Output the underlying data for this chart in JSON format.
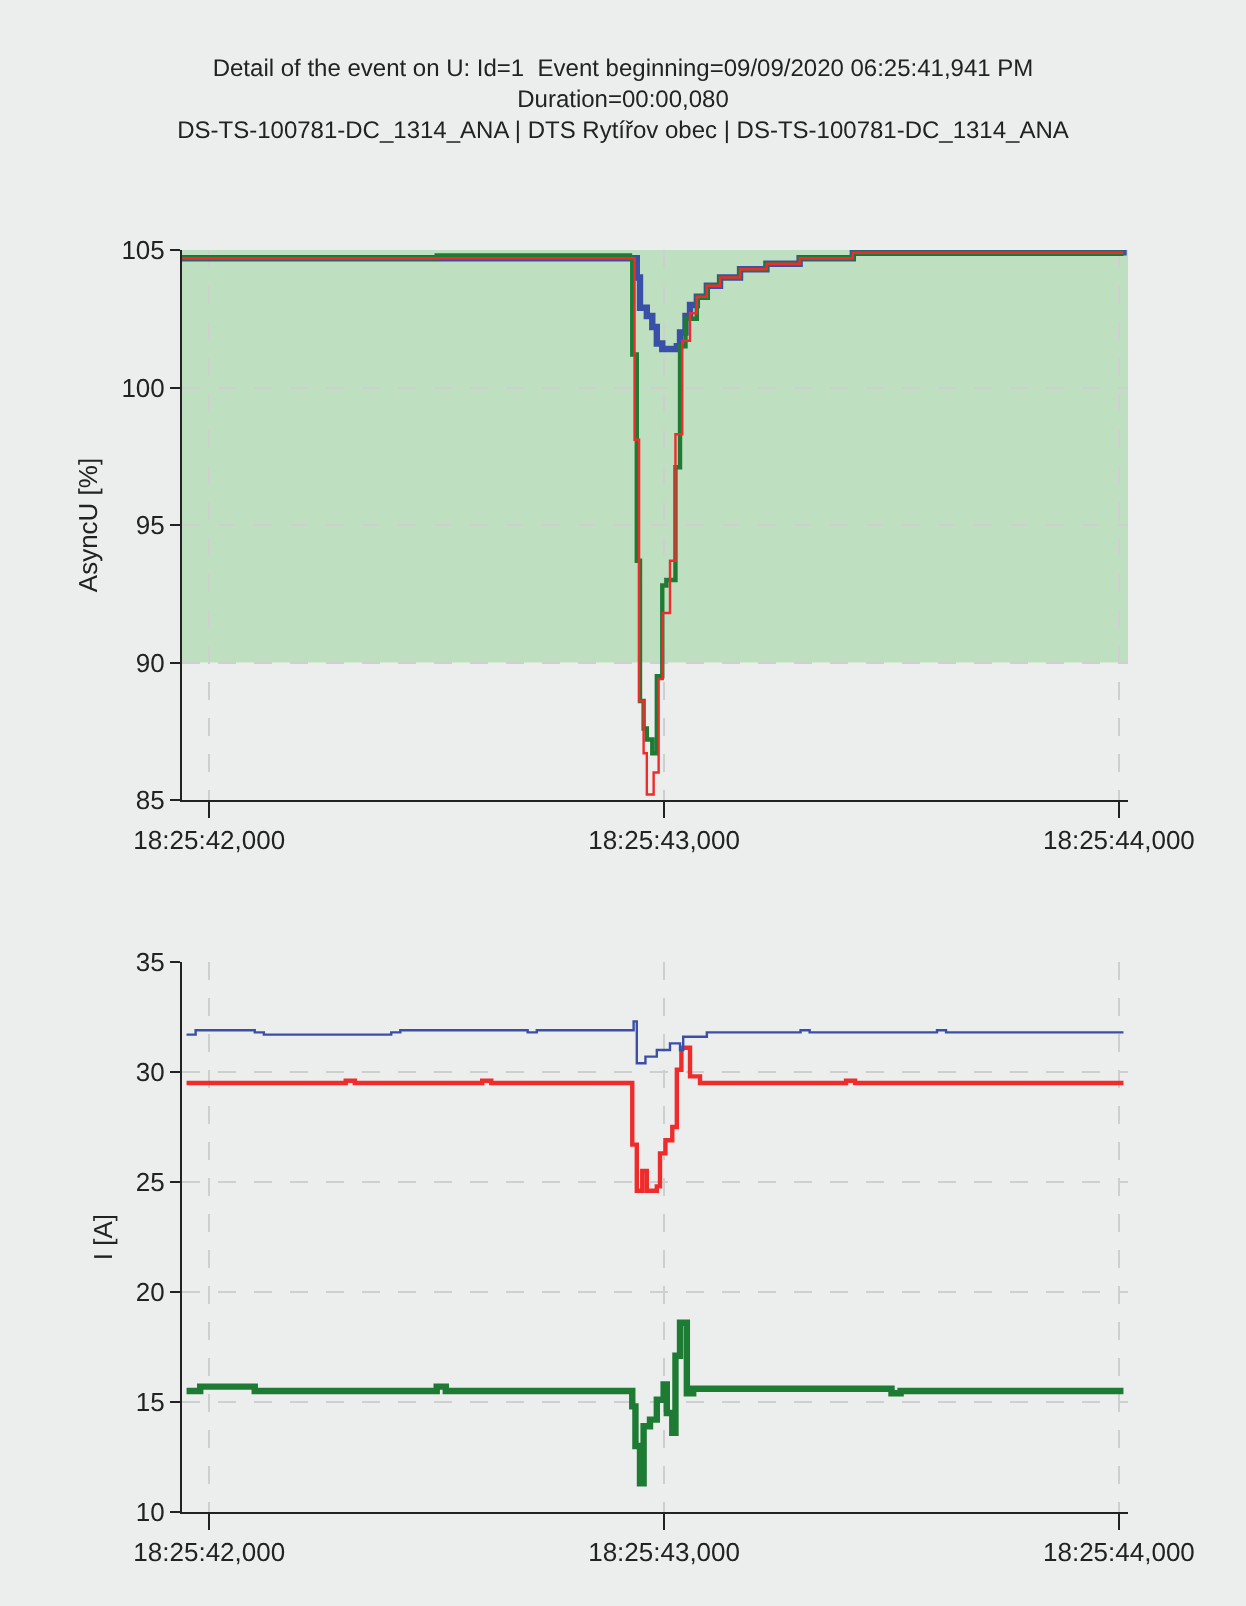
{
  "chart_data": [
    {
      "type": "step",
      "title": "Detail of the event on U: Id=1  Event beginning=09/09/2020 06:25:41,941 PM\nDuration=00:00,080\nDS-TS-100781-DC_1314_ANA | DTS Rytířov obec | DS-TS-100781-DC_1314_ANA",
      "ylabel": "AsyncU [%]",
      "xlim": [
        "2020-09-09T18:25:41.940",
        "2020-09-09T18:25:44.020"
      ],
      "xticks": [
        {
          "value": "2020-09-09T18:25:42.000",
          "label": "18:25:42,000"
        },
        {
          "value": "2020-09-09T18:25:43.000",
          "label": "18:25:43,000"
        },
        {
          "value": "2020-09-09T18:25:44.000",
          "label": "18:25:44,000"
        }
      ],
      "ylim": [
        85,
        105
      ],
      "yticks": [
        85,
        90,
        95,
        100,
        105
      ],
      "grid": true,
      "line_style": "solid",
      "bands": [
        {
          "axis": "y",
          "from": 90,
          "to": 105,
          "color": "#bfe0c0"
        }
      ],
      "series": [
        {
          "color": "#ee2c2c",
          "x": [
            "2020-09-09T18:25:41.940",
            "2020-09-09T18:25:42.500",
            "2020-09-09T18:25:42.925",
            "2020-09-09T18:25:42.935",
            "2020-09-09T18:25:42.945",
            "2020-09-09T18:25:42.955",
            "2020-09-09T18:25:42.962",
            "2020-09-09T18:25:42.977",
            "2020-09-09T18:25:42.988",
            "2020-09-09T18:25:42.997",
            "2020-09-09T18:25:43.013",
            "2020-09-09T18:25:43.025",
            "2020-09-09T18:25:43.040",
            "2020-09-09T18:25:43.057",
            "2020-09-09T18:25:43.072",
            "2020-09-09T18:25:43.094",
            "2020-09-09T18:25:43.123",
            "2020-09-09T18:25:43.167",
            "2020-09-09T18:25:43.225",
            "2020-09-09T18:25:43.298",
            "2020-09-09T18:25:43.415",
            "2020-09-09T18:25:43.518",
            "2020-09-09T18:25:44.010"
          ],
          "values": [
            104.7,
            104.7,
            104.7,
            98.1,
            88.6,
            86.7,
            85.2,
            86.0,
            89.4,
            91.8,
            93.7,
            98.3,
            101.7,
            102.7,
            103.3,
            103.7,
            104.0,
            104.3,
            104.5,
            104.7,
            104.9,
            104.9,
            104.9
          ]
        },
        {
          "color": "#1e7b34",
          "x": [
            "2020-09-09T18:25:41.940",
            "2020-09-09T18:25:42.500",
            "2020-09-09T18:25:42.925",
            "2020-09-09T18:25:42.930",
            "2020-09-09T18:25:42.940",
            "2020-09-09T18:25:42.947",
            "2020-09-09T18:25:42.955",
            "2020-09-09T18:25:42.962",
            "2020-09-09T18:25:42.974",
            "2020-09-09T18:25:42.984",
            "2020-09-09T18:25:42.996",
            "2020-09-09T18:25:43.005",
            "2020-09-09T18:25:43.025",
            "2020-09-09T18:25:43.035",
            "2020-09-09T18:25:43.047",
            "2020-09-09T18:25:43.072",
            "2020-09-09T18:25:43.094",
            "2020-09-09T18:25:43.123",
            "2020-09-09T18:25:43.167",
            "2020-09-09T18:25:43.225",
            "2020-09-09T18:25:43.298",
            "2020-09-09T18:25:43.415",
            "2020-09-09T18:25:43.518",
            "2020-09-09T18:25:44.010"
          ],
          "values": [
            104.7,
            104.8,
            104.7,
            101.2,
            93.7,
            88.6,
            87.6,
            87.2,
            86.7,
            89.5,
            92.8,
            93.0,
            97.1,
            101.5,
            102.5,
            103.3,
            103.7,
            104.0,
            104.3,
            104.5,
            104.7,
            104.9,
            104.9,
            104.9
          ]
        },
        {
          "color": "#3a4fa8",
          "x": [
            "2020-09-09T18:25:41.940",
            "2020-09-09T18:25:42.500",
            "2020-09-09T18:25:42.925",
            "2020-09-09T18:25:42.940",
            "2020-09-09T18:25:42.947",
            "2020-09-09T18:25:42.962",
            "2020-09-09T18:25:42.974",
            "2020-09-09T18:25:42.984",
            "2020-09-09T18:25:42.996",
            "2020-09-09T18:25:43.028",
            "2020-09-09T18:25:43.035",
            "2020-09-09T18:25:43.047",
            "2020-09-09T18:25:43.057",
            "2020-09-09T18:25:43.072",
            "2020-09-09T18:25:43.094",
            "2020-09-09T18:25:43.123",
            "2020-09-09T18:25:43.167",
            "2020-09-09T18:25:43.225",
            "2020-09-09T18:25:43.298",
            "2020-09-09T18:25:43.415",
            "2020-09-09T18:25:43.518",
            "2020-09-09T18:25:44.010"
          ],
          "values": [
            104.7,
            104.7,
            104.7,
            104.0,
            102.9,
            102.6,
            102.2,
            101.6,
            101.4,
            101.5,
            102.0,
            102.6,
            103.0,
            103.3,
            103.7,
            104.0,
            104.3,
            104.5,
            104.7,
            104.9,
            104.9,
            104.8
          ]
        }
      ]
    },
    {
      "type": "step",
      "ylabel": "I [A]",
      "xlim": [
        "2020-09-09T18:25:41.940",
        "2020-09-09T18:25:44.020"
      ],
      "xticks": [
        {
          "value": "2020-09-09T18:25:42.000",
          "label": "18:25:42,000"
        },
        {
          "value": "2020-09-09T18:25:43.000",
          "label": "18:25:43,000"
        },
        {
          "value": "2020-09-09T18:25:44.000",
          "label": "18:25:44,000"
        }
      ],
      "ylim": [
        10,
        35
      ],
      "yticks": [
        10,
        15,
        20,
        25,
        30,
        35
      ],
      "grid": true,
      "line_style": "solid",
      "series": [
        {
          "color": "#3a4fa8",
          "x": [
            "2020-09-09T18:25:41.950",
            "2020-09-09T18:25:41.970",
            "2020-09-09T18:25:42.100",
            "2020-09-09T18:25:42.120",
            "2020-09-09T18:25:42.400",
            "2020-09-09T18:25:42.420",
            "2020-09-09T18:25:42.700",
            "2020-09-09T18:25:42.720",
            "2020-09-09T18:25:42.933",
            "2020-09-09T18:25:42.940",
            "2020-09-09T18:25:42.959",
            "2020-09-09T18:25:42.984",
            "2020-09-09T18:25:43.013",
            "2020-09-09T18:25:43.035",
            "2020-09-09T18:25:43.042",
            "2020-09-09T18:25:43.094",
            "2020-09-09T18:25:43.300",
            "2020-09-09T18:25:43.320",
            "2020-09-09T18:25:43.600",
            "2020-09-09T18:25:43.620",
            "2020-09-09T18:25:44.010"
          ],
          "values": [
            31.7,
            31.9,
            31.8,
            31.7,
            31.8,
            31.9,
            31.8,
            31.9,
            32.3,
            30.4,
            30.7,
            31.0,
            31.3,
            31.0,
            31.6,
            31.8,
            31.9,
            31.8,
            31.9,
            31.8,
            31.8
          ]
        },
        {
          "color": "#ee2c2c",
          "x": [
            "2020-09-09T18:25:41.950",
            "2020-09-09T18:25:42.300",
            "2020-09-09T18:25:42.320",
            "2020-09-09T18:25:42.600",
            "2020-09-09T18:25:42.620",
            "2020-09-09T18:25:42.930",
            "2020-09-09T18:25:42.940",
            "2020-09-09T18:25:42.952",
            "2020-09-09T18:25:42.962",
            "2020-09-09T18:25:42.984",
            "2020-09-09T18:25:42.991",
            "2020-09-09T18:25:43.003",
            "2020-09-09T18:25:43.018",
            "2020-09-09T18:25:43.028",
            "2020-09-09T18:25:43.038",
            "2020-09-09T18:25:43.057",
            "2020-09-09T18:25:43.079",
            "2020-09-09T18:25:43.400",
            "2020-09-09T18:25:43.420",
            "2020-09-09T18:25:44.010"
          ],
          "values": [
            29.5,
            29.6,
            29.5,
            29.6,
            29.5,
            26.7,
            24.6,
            25.5,
            24.6,
            24.8,
            26.3,
            26.9,
            27.5,
            30.1,
            31.1,
            29.8,
            29.5,
            29.6,
            29.5,
            29.5
          ]
        },
        {
          "color": "#1e7b34",
          "x": [
            "2020-09-09T18:25:41.950",
            "2020-09-09T18:25:41.980",
            "2020-09-09T18:25:42.100",
            "2020-09-09T18:25:42.500",
            "2020-09-09T18:25:42.520",
            "2020-09-09T18:25:42.925",
            "2020-09-09T18:25:42.930",
            "2020-09-09T18:25:42.937",
            "2020-09-09T18:25:42.947",
            "2020-09-09T18:25:42.955",
            "2020-09-09T18:25:42.969",
            "2020-09-09T18:25:42.984",
            "2020-09-09T18:25:42.999",
            "2020-09-09T18:25:43.006",
            "2020-09-09T18:25:43.018",
            "2020-09-09T18:25:43.025",
            "2020-09-09T18:25:43.035",
            "2020-09-09T18:25:43.050",
            "2020-09-09T18:25:43.064",
            "2020-09-09T18:25:43.200",
            "2020-09-09T18:25:43.500",
            "2020-09-09T18:25:43.520",
            "2020-09-09T18:25:44.010"
          ],
          "values": [
            15.5,
            15.7,
            15.5,
            15.7,
            15.5,
            15.5,
            14.8,
            13.0,
            11.3,
            13.9,
            14.2,
            15.1,
            15.8,
            14.5,
            13.6,
            17.1,
            18.6,
            15.4,
            15.6,
            15.6,
            15.4,
            15.5,
            15.5
          ]
        }
      ]
    }
  ]
}
